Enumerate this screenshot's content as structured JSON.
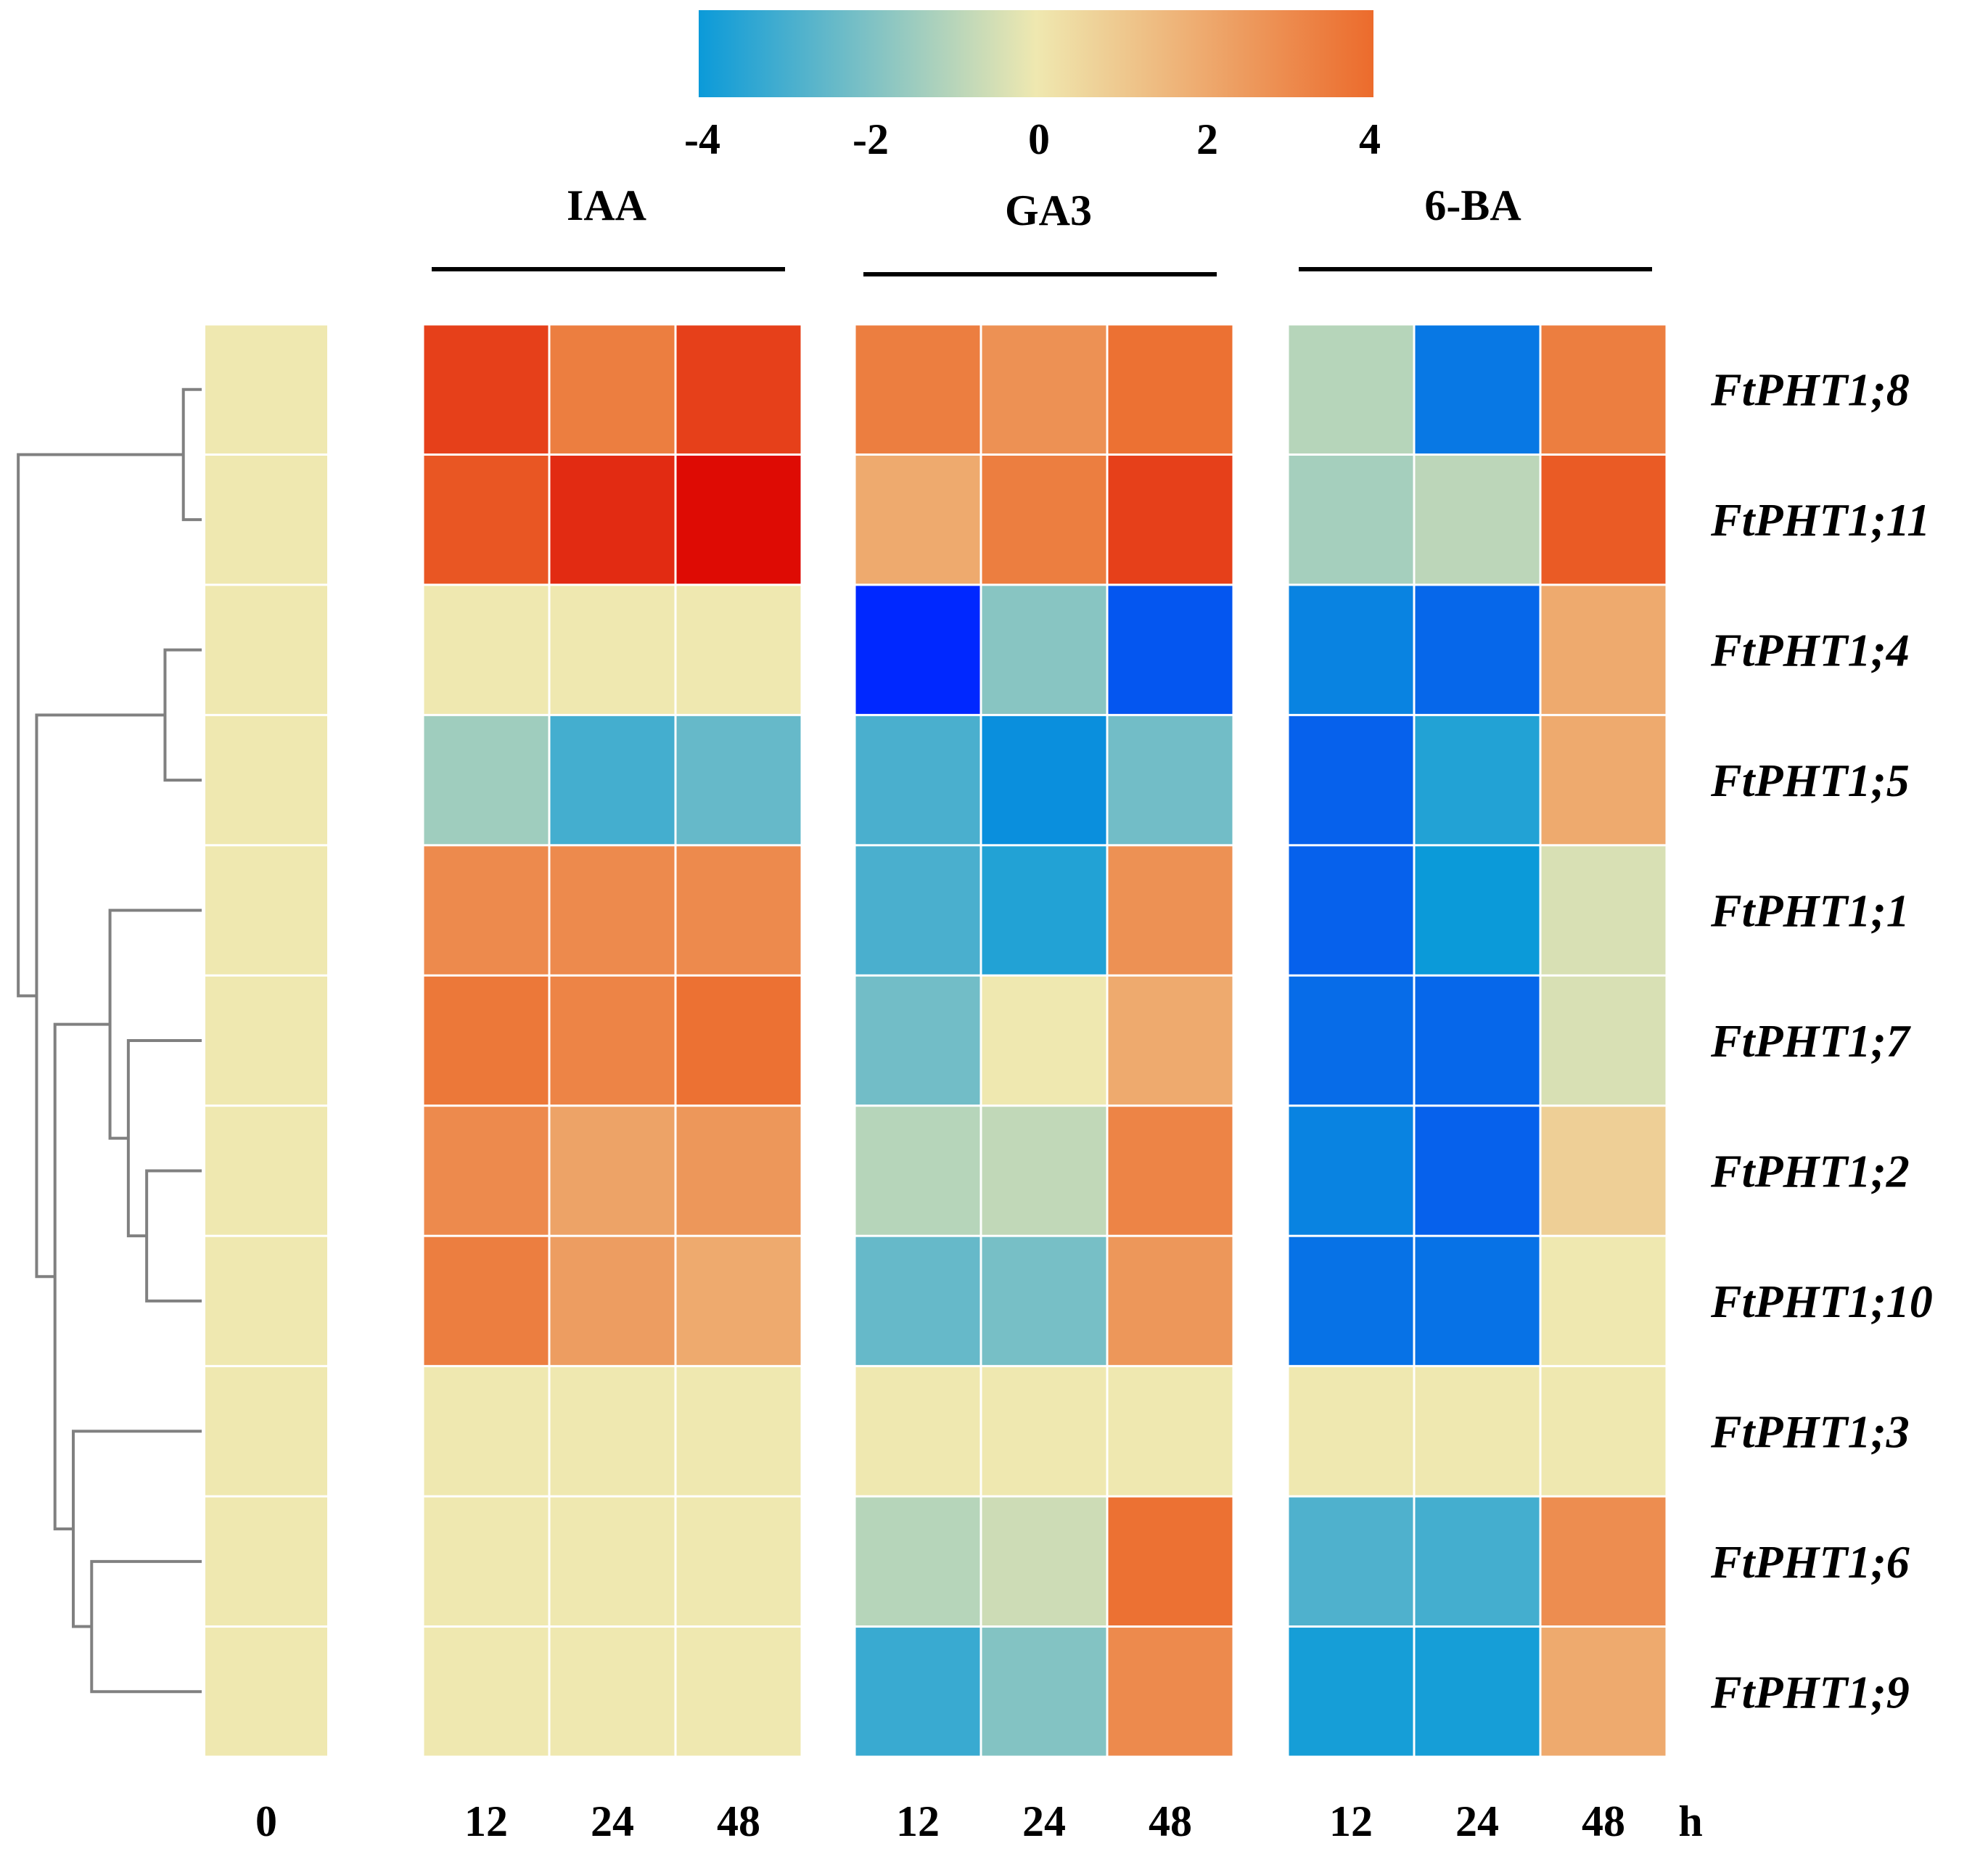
{
  "chart_data": {
    "type": "heatmap",
    "title": "",
    "colorbar": {
      "min": -4,
      "max": 4,
      "ticks": [
        "-4",
        "-2",
        "0",
        "2",
        "4"
      ],
      "colors": [
        "#0b9ad9",
        "#efe8b0",
        "#ec6b2c"
      ]
    },
    "control": {
      "label": "0",
      "values": [
        0,
        0,
        0,
        0,
        0,
        0,
        0,
        0,
        0,
        0,
        0
      ]
    },
    "groups": [
      {
        "name": "IAA",
        "times": [
          "12",
          "24",
          "48"
        ],
        "values": [
          [
            4.8,
            3.4,
            4.8
          ],
          [
            4.4,
            5.2,
            5.8
          ],
          [
            0,
            0,
            0
          ],
          [
            -1.4,
            -3.0,
            -2.4
          ],
          [
            3.0,
            3.0,
            3.0
          ],
          [
            3.6,
            3.2,
            3.8
          ],
          [
            3.0,
            2.2,
            2.6
          ],
          [
            3.4,
            2.4,
            2.0
          ],
          [
            0,
            0,
            0
          ],
          [
            0,
            0,
            0
          ],
          [
            0,
            0,
            0
          ]
        ]
      },
      {
        "name": "GA3",
        "times": [
          "12",
          "24",
          "48"
        ],
        "values": [
          [
            3.4,
            2.8,
            3.8
          ],
          [
            2.0,
            3.4,
            4.8
          ],
          [
            -6.0,
            -1.8,
            -5.2
          ],
          [
            -2.9,
            -4.2,
            -2.2
          ],
          [
            -2.9,
            -3.6,
            2.8
          ],
          [
            -2.2,
            0,
            2.0
          ],
          [
            -1.0,
            -0.8,
            3.2
          ],
          [
            -2.4,
            -2.1,
            2.6
          ],
          [
            0,
            0,
            0
          ],
          [
            -1.0,
            -0.6,
            3.8
          ],
          [
            -3.2,
            -1.9,
            3.0
          ]
        ]
      },
      {
        "name": "6-BA",
        "times": [
          "12",
          "24",
          "48"
        ],
        "values": [
          [
            -1.0,
            -4.6,
            3.4
          ],
          [
            -1.3,
            -0.9,
            4.3
          ],
          [
            -4.4,
            -4.9,
            2.0
          ],
          [
            -5.0,
            -3.6,
            2.0
          ],
          [
            -5.0,
            -4.0,
            -0.4
          ],
          [
            -4.8,
            -4.9,
            -0.4
          ],
          [
            -4.4,
            -5.0,
            0.8
          ],
          [
            -4.7,
            -4.7,
            0
          ],
          [
            0,
            0,
            0
          ],
          [
            -2.8,
            -3.0,
            2.9
          ],
          [
            -3.8,
            -3.8,
            2.0
          ]
        ]
      }
    ],
    "genes": [
      "FtPHT1;8",
      "FtPHT1;11",
      "FtPHT1;4",
      "FtPHT1;5",
      "FtPHT1;1",
      "FtPHT1;7",
      "FtPHT1;2",
      "FtPHT1;10",
      "FtPHT1;3",
      "FtPHT1;6",
      "FtPHT1;9"
    ],
    "time_unit": "h",
    "dendrogram": [
      {
        "a": 0,
        "b": 1
      },
      {
        "a": 2,
        "b": 3
      },
      {
        "a": 6,
        "b": 7
      },
      {
        "a": 5,
        "b": "n3"
      },
      {
        "a": 4,
        "b": "n4"
      },
      {
        "a": 9,
        "b": 10
      },
      {
        "a": 8,
        "b": "n6"
      },
      {
        "a": "n5",
        "b": "n7"
      },
      {
        "a": "n2",
        "b": "n8"
      },
      {
        "a": "n1",
        "b": "n9"
      }
    ]
  }
}
